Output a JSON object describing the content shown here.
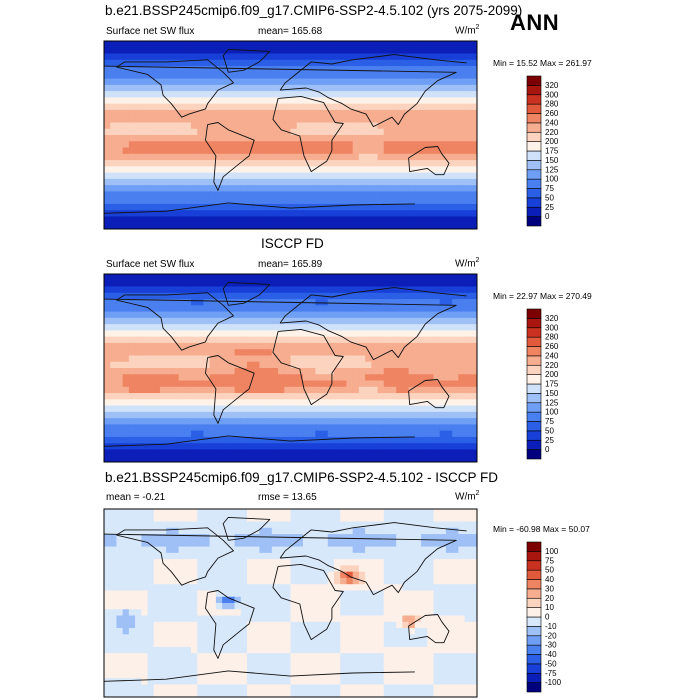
{
  "annual_label": "ANN",
  "chart_data": [
    {
      "type": "heatmap",
      "title": "b.e21.BSSP245cmip6.f09_g17.CMIP6-SSP2-4.5.102 (yrs 2075-2099)",
      "left_label": "Surface net SW flux",
      "center_label": "mean= 165.68",
      "units_base": "W/m",
      "units_exp": "2",
      "minmax_label": "Min =  15.52 Max = 261.97",
      "min": 15.52,
      "max": 261.97,
      "mean": 165.68,
      "colorbar_levels": [
        "0",
        "25",
        "50",
        "75",
        "100",
        "125",
        "150",
        "175",
        "200",
        "220",
        "240",
        "260",
        "280",
        "300",
        "320"
      ],
      "colorbar_colors": [
        "#00007f",
        "#0b1fb8",
        "#1840d8",
        "#2a5fe6",
        "#4a7ff0",
        "#6f9ff4",
        "#9fc0f7",
        "#d0e2fa",
        "#fff2e8",
        "#fbd3bf",
        "#f7ad8f",
        "#ef8462",
        "#e05a3b",
        "#c93220",
        "#a9150f",
        "#7d0000"
      ]
    },
    {
      "type": "heatmap",
      "title": "ISCCP FD",
      "left_label": "Surface net SW flux",
      "center_label": "mean= 165.89",
      "units_base": "W/m",
      "units_exp": "2",
      "minmax_label": "Min =  22.97 Max = 270.49",
      "min": 22.97,
      "max": 270.49,
      "mean": 165.89,
      "colorbar_levels": [
        "0",
        "25",
        "50",
        "75",
        "100",
        "125",
        "150",
        "175",
        "200",
        "220",
        "240",
        "260",
        "280",
        "300",
        "320"
      ],
      "colorbar_colors": [
        "#00007f",
        "#0b1fb8",
        "#1840d8",
        "#2a5fe6",
        "#4a7ff0",
        "#6f9ff4",
        "#9fc0f7",
        "#d0e2fa",
        "#fff2e8",
        "#fbd3bf",
        "#f7ad8f",
        "#ef8462",
        "#e05a3b",
        "#c93220",
        "#a9150f",
        "#7d0000"
      ]
    },
    {
      "type": "heatmap",
      "title": "b.e21.BSSP245cmip6.f09_g17.CMIP6-SSP2-4.5.102 - ISCCP FD",
      "left_label": "mean =  -0.21",
      "center_label": "rmse =  13.65",
      "units_base": "W/m",
      "units_exp": "2",
      "minmax_label": "Min = -60.98 Max =  50.07",
      "min": -60.98,
      "max": 50.07,
      "mean": -0.21,
      "rmse": 13.65,
      "colorbar_levels": [
        "-100",
        "-75",
        "-50",
        "-40",
        "-30",
        "-20",
        "-10",
        "0",
        "10",
        "20",
        "30",
        "40",
        "50",
        "75",
        "100"
      ],
      "colorbar_colors": [
        "#00007f",
        "#0b1fb8",
        "#1840d8",
        "#2a5fe6",
        "#4a7ff0",
        "#6f9ff4",
        "#9fc0f7",
        "#d8e8fb",
        "#fdf0e8",
        "#fbd3bf",
        "#f7ad8f",
        "#ef8462",
        "#e05a3b",
        "#c93220",
        "#a9150f",
        "#7d0000"
      ]
    }
  ]
}
